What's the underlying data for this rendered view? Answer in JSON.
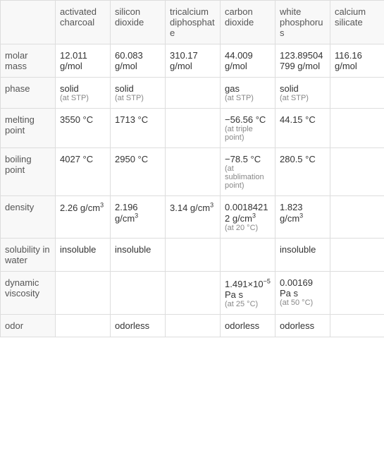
{
  "table": {
    "columns": [
      "activated charcoal",
      "silicon dioxide",
      "tricalcium diphosphate",
      "carbon dioxide",
      "white phosphorus",
      "calcium silicate"
    ],
    "rows": [
      {
        "property": "molar mass",
        "cells": [
          {
            "value": "12.011 g/mol"
          },
          {
            "value": "60.083 g/mol"
          },
          {
            "value": "310.17 g/mol"
          },
          {
            "value": "44.009 g/mol"
          },
          {
            "value": "123.89504799 g/mol"
          },
          {
            "value": "116.16 g/mol"
          }
        ]
      },
      {
        "property": "phase",
        "cells": [
          {
            "value": "solid",
            "note": "(at STP)"
          },
          {
            "value": "solid",
            "note": "(at STP)"
          },
          {
            "value": ""
          },
          {
            "value": "gas",
            "note": "(at STP)"
          },
          {
            "value": "solid",
            "note": "(at STP)"
          },
          {
            "value": ""
          }
        ]
      },
      {
        "property": "melting point",
        "cells": [
          {
            "value": "3550 °C"
          },
          {
            "value": "1713 °C"
          },
          {
            "value": ""
          },
          {
            "value": "−56.56 °C",
            "note": "(at triple point)"
          },
          {
            "value": "44.15 °C"
          },
          {
            "value": ""
          }
        ]
      },
      {
        "property": "boiling point",
        "cells": [
          {
            "value": "4027 °C"
          },
          {
            "value": "2950 °C"
          },
          {
            "value": ""
          },
          {
            "value": "−78.5 °C",
            "note": "(at sublimation point)"
          },
          {
            "value": "280.5 °C"
          },
          {
            "value": ""
          }
        ]
      },
      {
        "property": "density",
        "cells": [
          {
            "value": "2.26 g/cm",
            "sup": "3"
          },
          {
            "value": "2.196 g/cm",
            "sup": "3"
          },
          {
            "value": "3.14 g/cm",
            "sup": "3"
          },
          {
            "value": "0.00184212 g/cm",
            "sup": "3",
            "note": "(at 20 °C)"
          },
          {
            "value": "1.823 g/cm",
            "sup": "3"
          },
          {
            "value": ""
          }
        ]
      },
      {
        "property": "solubility in water",
        "cells": [
          {
            "value": "insoluble"
          },
          {
            "value": "insoluble"
          },
          {
            "value": ""
          },
          {
            "value": ""
          },
          {
            "value": "insoluble"
          },
          {
            "value": ""
          }
        ]
      },
      {
        "property": "dynamic viscosity",
        "cells": [
          {
            "value": ""
          },
          {
            "value": ""
          },
          {
            "value": ""
          },
          {
            "value": "1.491×10",
            "sup": "−5",
            "suffix": " Pa s",
            "note": "(at 25 °C)"
          },
          {
            "value": "0.00169 Pa s",
            "note": "(at 50 °C)"
          },
          {
            "value": ""
          }
        ]
      },
      {
        "property": "odor",
        "cells": [
          {
            "value": ""
          },
          {
            "value": "odorless"
          },
          {
            "value": ""
          },
          {
            "value": "odorless"
          },
          {
            "value": "odorless"
          },
          {
            "value": ""
          }
        ]
      }
    ]
  }
}
